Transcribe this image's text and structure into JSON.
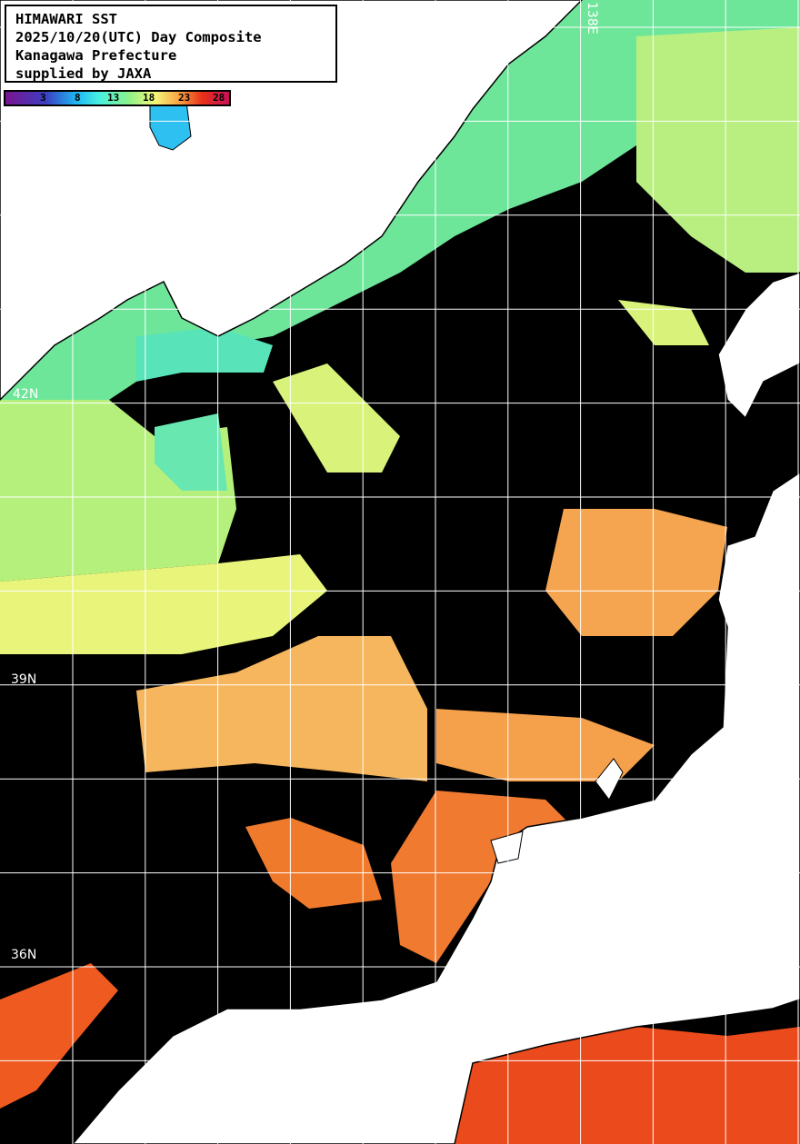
{
  "title": {
    "lines": [
      "HIMAWARI SST",
      "2025/10/20(UTC) Day Composite",
      "Kanagawa Prefecture",
      "supplied by JAXA"
    ]
  },
  "colorbar": {
    "ticks": [
      "3",
      "8",
      "13",
      "18",
      "23",
      "28"
    ],
    "colors": [
      "#7a1490",
      "#3b3fc0",
      "#1fb8f5",
      "#48f0e0",
      "#8cf08a",
      "#f5f77a",
      "#f9a040",
      "#e83018",
      "#c8105a"
    ]
  },
  "grid_labels": {
    "lat": [
      "42N",
      "39N",
      "36N"
    ],
    "lon": [
      "138E"
    ]
  },
  "colors": {
    "cloud_or_nodata": "#000000",
    "land": "#ffffff",
    "grid": "#ffffff"
  }
}
